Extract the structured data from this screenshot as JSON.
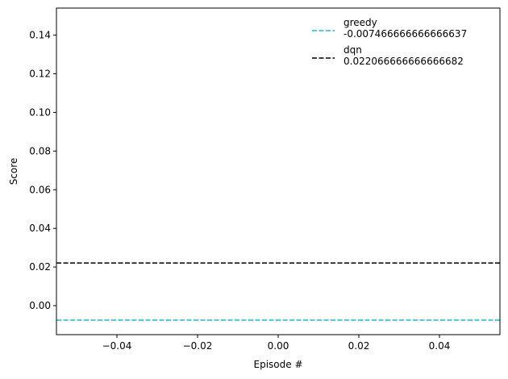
{
  "chart_data": {
    "type": "line",
    "title": "",
    "xlabel": "Episode #",
    "ylabel": "Score",
    "xlim": [
      -0.055,
      0.055
    ],
    "ylim": [
      -0.015,
      0.154
    ],
    "x_ticks": [
      -0.04,
      -0.02,
      0.0,
      0.02,
      0.04
    ],
    "x_tick_labels": [
      "−0.04",
      "−0.02",
      "0.00",
      "0.02",
      "0.04"
    ],
    "y_ticks": [
      0.0,
      0.02,
      0.04,
      0.06,
      0.08,
      0.1,
      0.12,
      0.14
    ],
    "y_tick_labels": [
      "0.00",
      "0.02",
      "0.04",
      "0.06",
      "0.08",
      "0.10",
      "0.12",
      "0.14"
    ],
    "grid": false,
    "legend_position": "top-right",
    "series": [
      {
        "name": "greedy\n -0.007466666666666637",
        "legend_lines": [
          "greedy",
          " -0.007466666666666637"
        ],
        "kind": "horizontal-line",
        "y": -0.007466666666666637,
        "style": "dashed",
        "color": "#17becf"
      },
      {
        "name": "dqn\n 0.022066666666666682",
        "legend_lines": [
          "dqn",
          " 0.022066666666666682"
        ],
        "kind": "horizontal-line",
        "y": 0.022066666666666682,
        "style": "dashed",
        "color": "#000000"
      }
    ]
  }
}
